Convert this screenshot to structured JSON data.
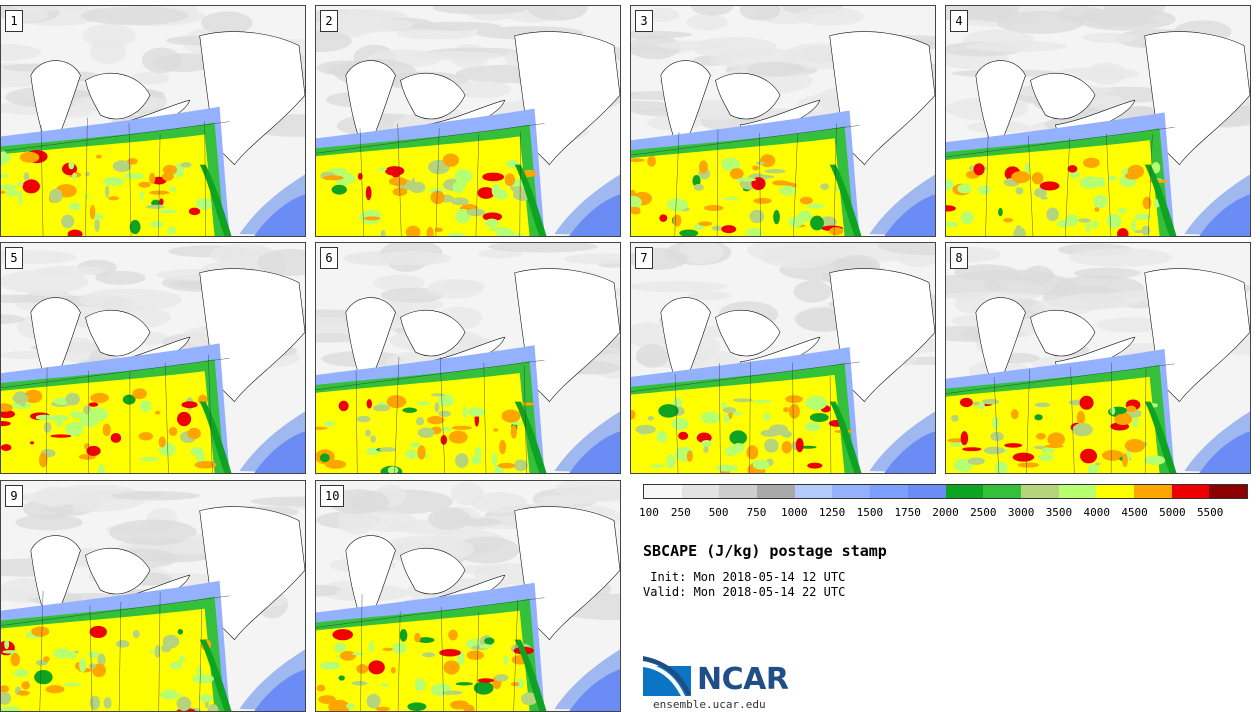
{
  "stamps": [
    {
      "label": "1"
    },
    {
      "label": "2"
    },
    {
      "label": "3"
    },
    {
      "label": "4"
    },
    {
      "label": "5"
    },
    {
      "label": "6"
    },
    {
      "label": "7"
    },
    {
      "label": "8"
    },
    {
      "label": "9"
    },
    {
      "label": "10"
    }
  ],
  "colorbar": {
    "colors": [
      "#f7f7f7",
      "#e3e3e3",
      "#cdcdcd",
      "#a9a9a9",
      "#b4cbff",
      "#93b1ff",
      "#7b9eff",
      "#6c8cf5",
      "#0ea320",
      "#34c03a",
      "#b6d47b",
      "#b5ff70",
      "#ffff00",
      "#ffa500",
      "#ee0000",
      "#8b0000"
    ],
    "ticks": [
      "100",
      "250",
      "500",
      "750",
      "1000",
      "1250",
      "1500",
      "1750",
      "2000",
      "2500",
      "3000",
      "3500",
      "4000",
      "4500",
      "5000",
      "5500"
    ]
  },
  "title": "SBCAPE (J/kg) postage stamp",
  "init": " Init: Mon 2018-05-14 12 UTC",
  "valid": "Valid: Mon 2018-05-14 22 UTC",
  "logo": {
    "text": "NCAR",
    "url": "ensemble.ucar.edu"
  }
}
